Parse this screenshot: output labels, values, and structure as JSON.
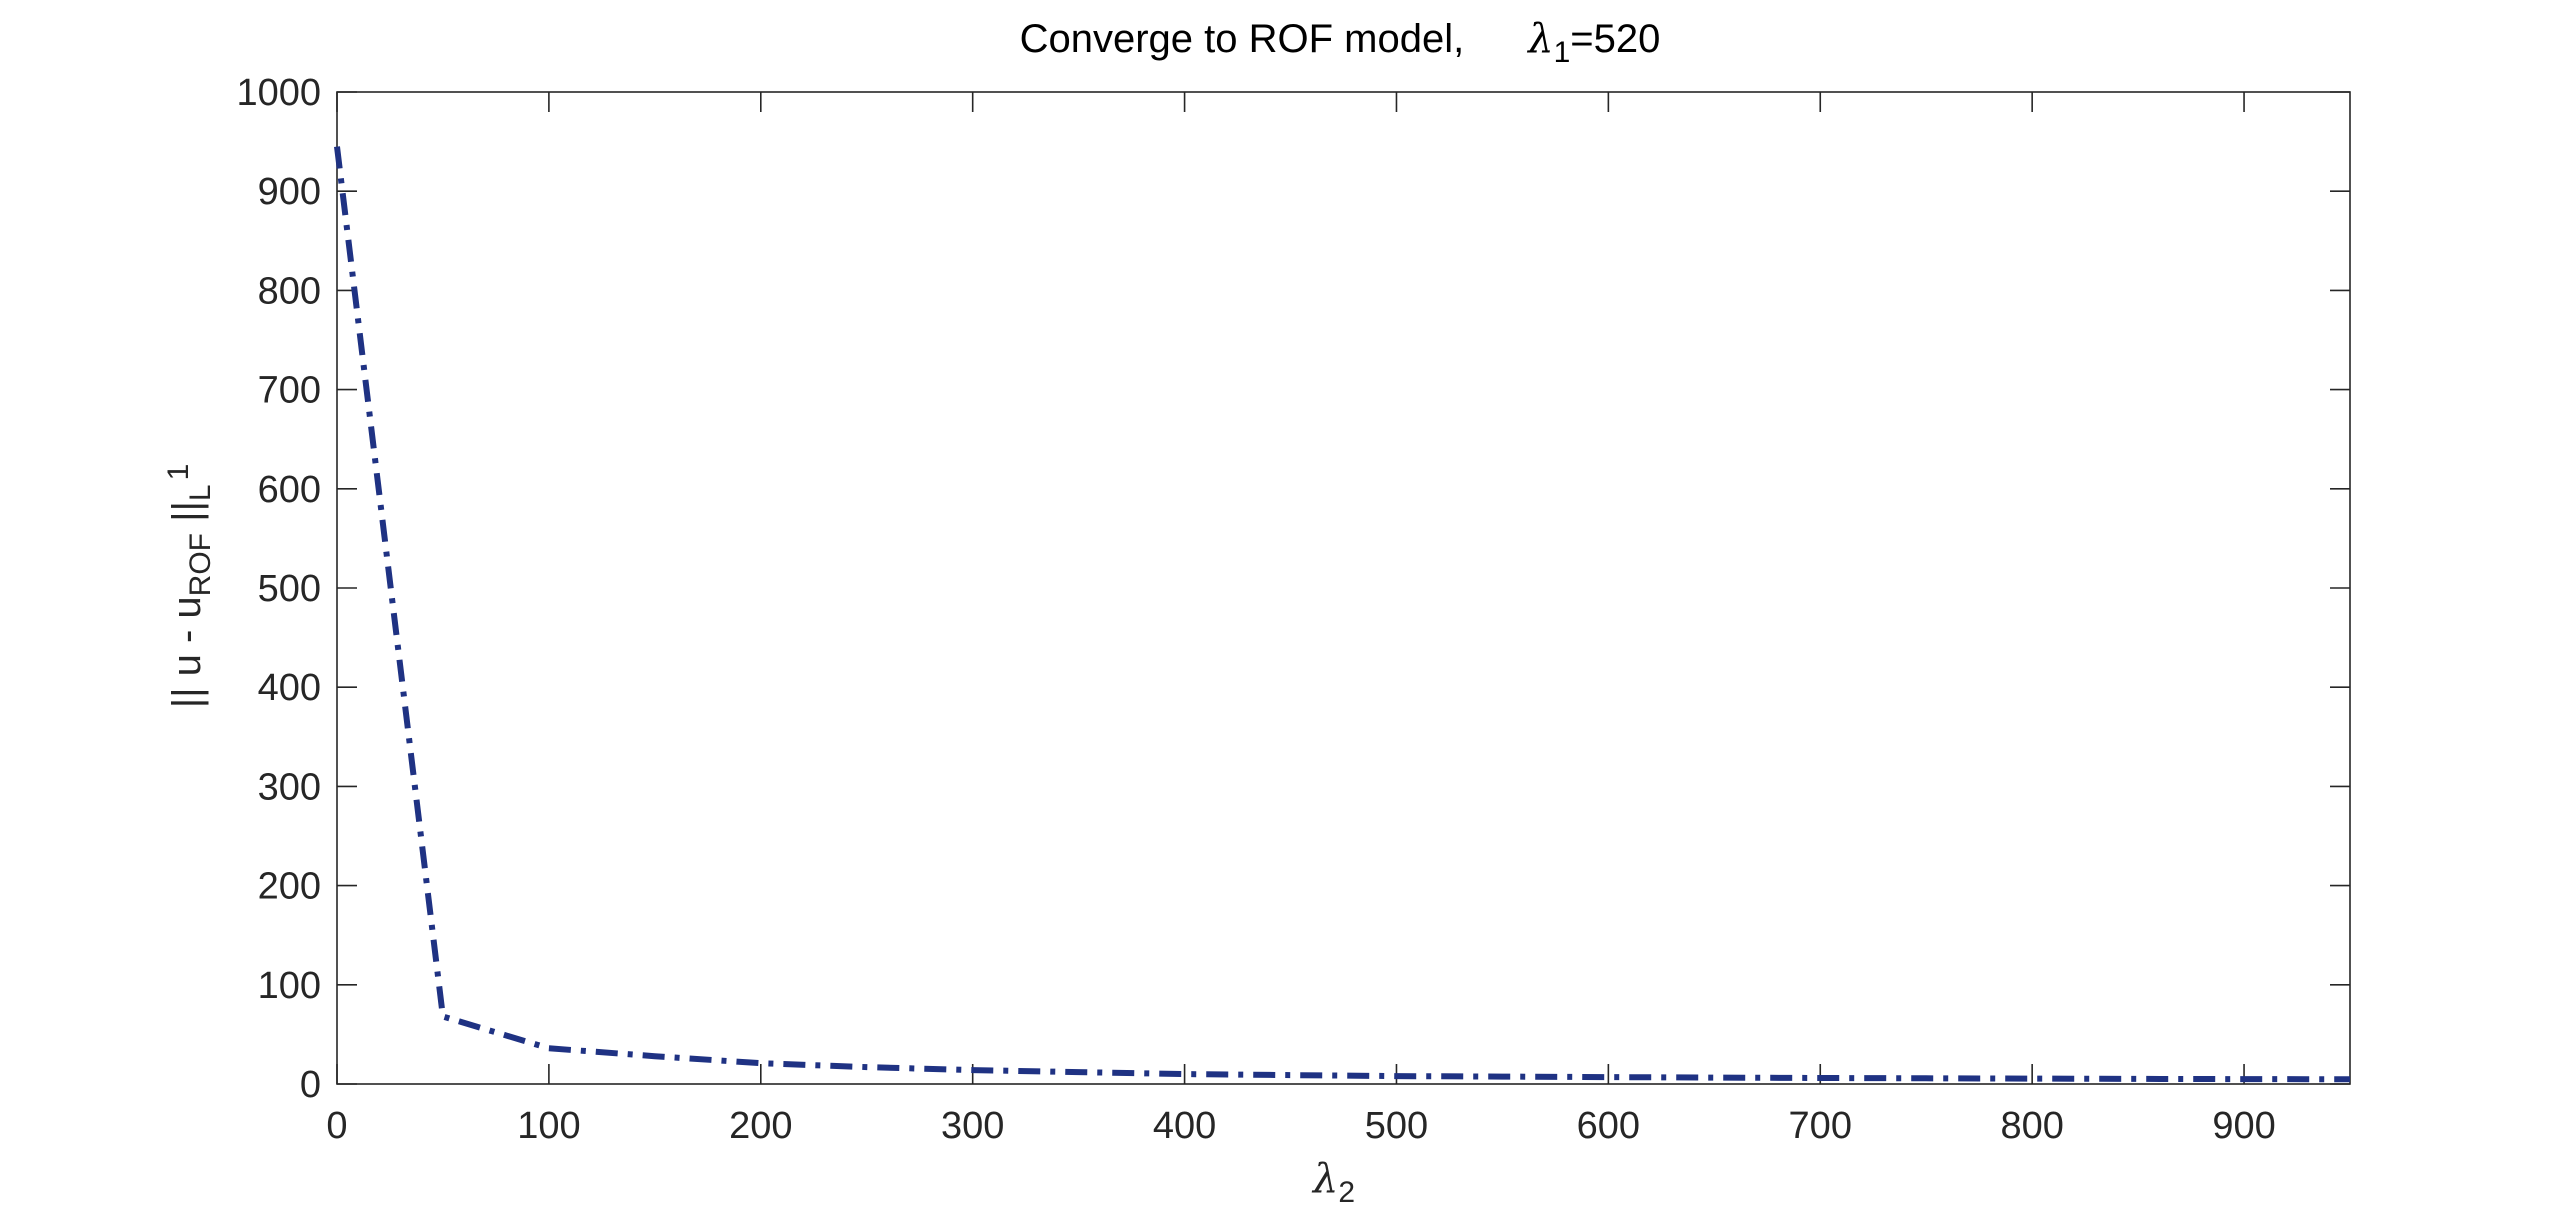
{
  "chart_data": {
    "type": "line",
    "title": "Converge to ROF model,",
    "title_param": {
      "symbol": "λ",
      "subscript": "1",
      "value": "=520"
    },
    "xlabel": {
      "symbol": "λ",
      "subscript": "2"
    },
    "ylabel": {
      "prefix": "|| u - u",
      "subscript": "ROF",
      "suffix": " ||",
      "norm_sub": "L",
      "norm_sup": "1"
    },
    "xlim": [
      0,
      950
    ],
    "ylim": [
      0,
      1000
    ],
    "xticks": [
      0,
      100,
      200,
      300,
      400,
      500,
      600,
      700,
      800,
      900
    ],
    "yticks": [
      0,
      100,
      200,
      300,
      400,
      500,
      600,
      700,
      800,
      900,
      1000
    ],
    "grid": false,
    "line_style": "dash-dot",
    "series": [
      {
        "color": "#1f3283",
        "x": [
          0,
          50,
          100,
          150,
          200,
          250,
          300,
          350,
          400,
          450,
          500,
          550,
          600,
          650,
          700,
          750,
          800,
          850,
          900,
          950
        ],
        "y": [
          945,
          68,
          36,
          28,
          21,
          17,
          14,
          12,
          10,
          9,
          8,
          7.5,
          7,
          6.5,
          6,
          5.7,
          5.4,
          5.1,
          4.9,
          4.7
        ]
      }
    ]
  }
}
